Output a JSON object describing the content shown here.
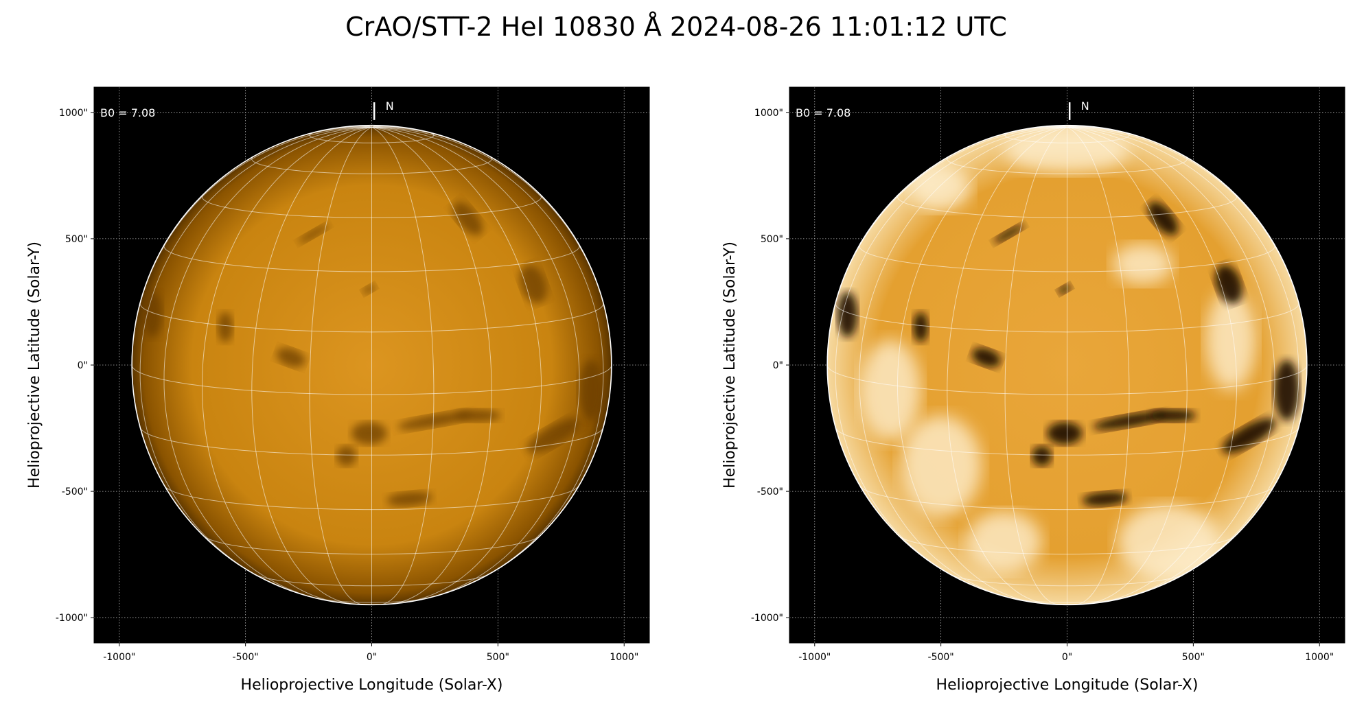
{
  "title": "CrAO/STT-2 HeI 10830 Å 2024-08-26 11:01:12 UTC",
  "chart_data": [
    {
      "type": "heatmap",
      "panel": "left",
      "xlabel": "Helioprojective Longitude (Solar-X)",
      "ylabel": "Helioprojective Latitude (Solar-Y)",
      "xlim": [
        -1100,
        1100
      ],
      "ylim": [
        -1100,
        1100
      ],
      "xticks": [
        "-1000\"",
        "-500\"",
        "0\"",
        "500\"",
        "1000\""
      ],
      "yticks": [
        "-1000\"",
        "-500\"",
        "0\"",
        "500\"",
        "1000\""
      ],
      "tick_values": [
        -1000,
        -500,
        0,
        500,
        1000
      ],
      "grid": true,
      "annotation_b0": "B0 = 7.08",
      "north_label": "N",
      "solar_radius_arcsec": 950,
      "b0_deg": 7.08,
      "grid_spacing_deg": 15,
      "colormap": "orange (HeI)",
      "contrast": "normal"
    },
    {
      "type": "heatmap",
      "panel": "right",
      "xlabel": "Helioprojective Longitude (Solar-X)",
      "ylabel": "Helioprojective Latitude (Solar-Y)",
      "xlim": [
        -1100,
        1100
      ],
      "ylim": [
        -1100,
        1100
      ],
      "xticks": [
        "-1000\"",
        "-500\"",
        "0\"",
        "500\"",
        "1000\""
      ],
      "yticks": [
        "-1000\"",
        "-500\"",
        "0\"",
        "500\"",
        "1000\""
      ],
      "tick_values": [
        -1000,
        -500,
        0,
        500,
        1000
      ],
      "grid": true,
      "annotation_b0": "B0 = 7.08",
      "north_label": "N",
      "solar_radius_arcsec": 950,
      "b0_deg": 7.08,
      "grid_spacing_deg": 15,
      "colormap": "orange (HeI)",
      "contrast": "enhanced"
    }
  ],
  "colors": {
    "disk": "#d08a10",
    "disk_dark": "#6a3c00",
    "disk_bright": "#fff3d8",
    "background": "#000000"
  }
}
